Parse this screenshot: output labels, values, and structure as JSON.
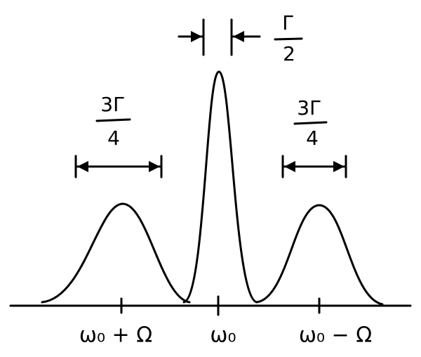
{
  "widths": [
    {
      "numerator": "3Γ",
      "denominator": "4"
    },
    {
      "numerator": "Γ",
      "denominator": "2"
    },
    {
      "numerator": "3Γ",
      "denominator": "4"
    }
  ],
  "axis_labels": [
    "ω₀ + Ω",
    "ω₀",
    "ω₀ − Ω"
  ]
}
